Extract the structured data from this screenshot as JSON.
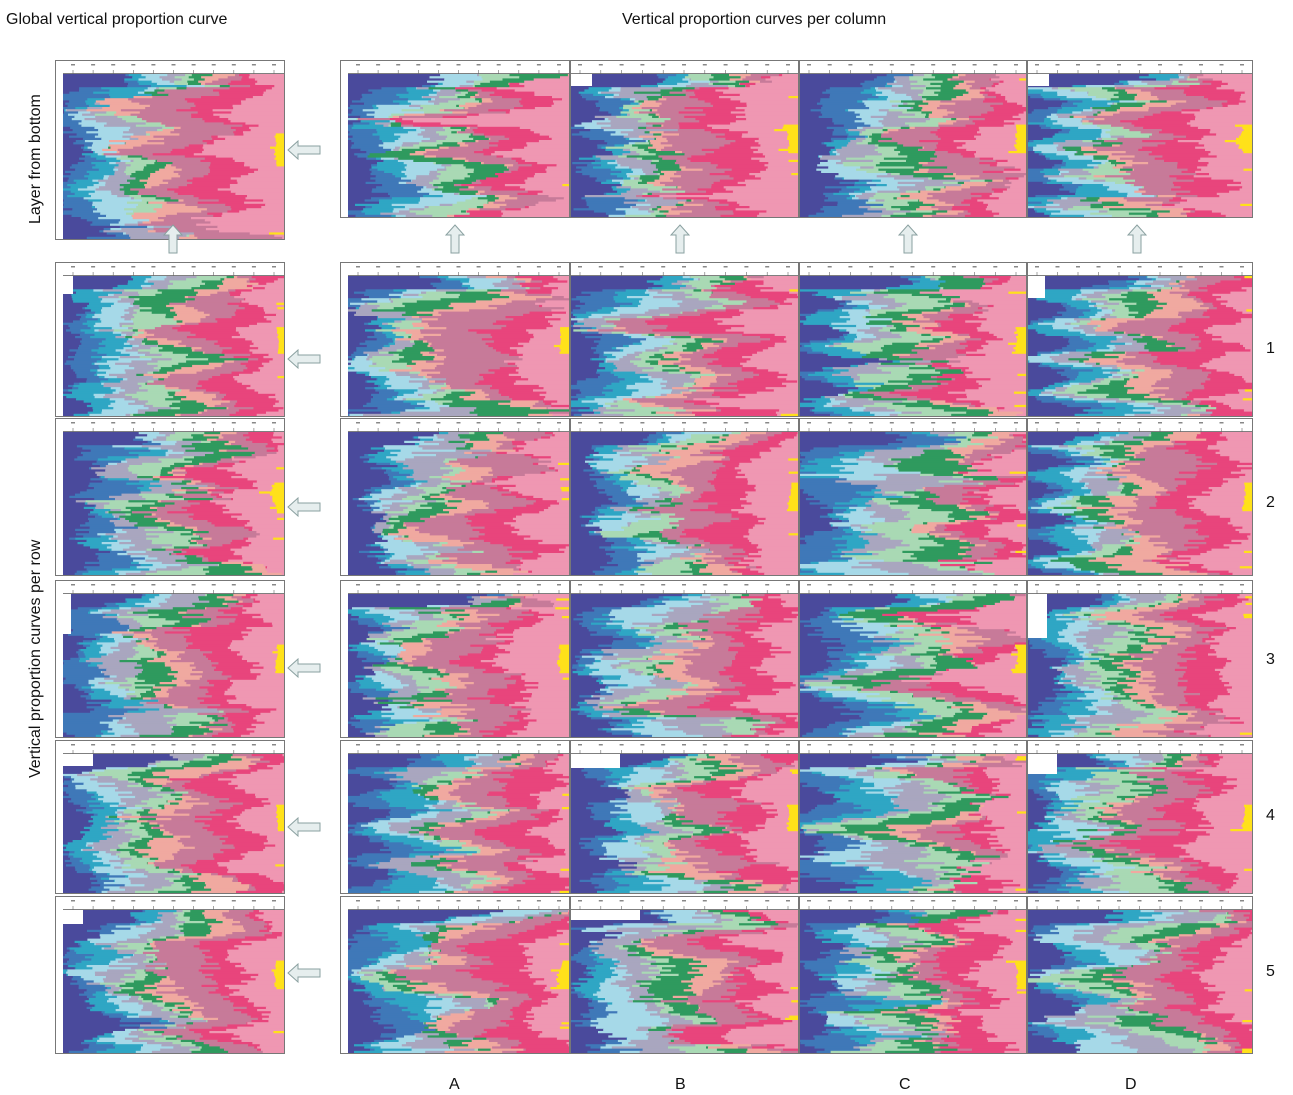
{
  "titles": {
    "global": "Global vertical proportion curve",
    "columns": "Vertical proportion curves per column",
    "rows_axis": "Vertical proportion curves per row",
    "layer_axis": "Layer from bottom"
  },
  "column_labels": [
    "A",
    "B",
    "C",
    "D"
  ],
  "row_labels": [
    "1",
    "2",
    "3",
    "4",
    "5"
  ],
  "colors": {
    "dark_blue": "#4a4a9c",
    "blue": "#3f78b8",
    "teal": "#2fa6c4",
    "light_blue": "#a6d9e8",
    "grey_mauve": "#a9a6bf",
    "light_green": "#a9d9b4",
    "green": "#2f9a5e",
    "salmon": "#f0a9a0",
    "mauve": "#c77a99",
    "pink": "#e8457c",
    "light_pink": "#ef97b2",
    "yellow": "#ffe11a"
  },
  "chart_data": {
    "type": "area",
    "description_units": "stacked lithotype proportions (0-1) per layer",
    "categories": [
      "dark_blue",
      "blue",
      "teal",
      "light_blue",
      "grey_mauve",
      "light_green",
      "green",
      "salmon",
      "mauve",
      "pink",
      "light_pink",
      "yellow"
    ],
    "panels": {
      "global": {},
      "columns": [
        "A",
        "B",
        "C",
        "D"
      ],
      "rows": [
        "1",
        "2",
        "3",
        "4",
        "5"
      ],
      "cells": "5 rows x 4 columns"
    }
  }
}
